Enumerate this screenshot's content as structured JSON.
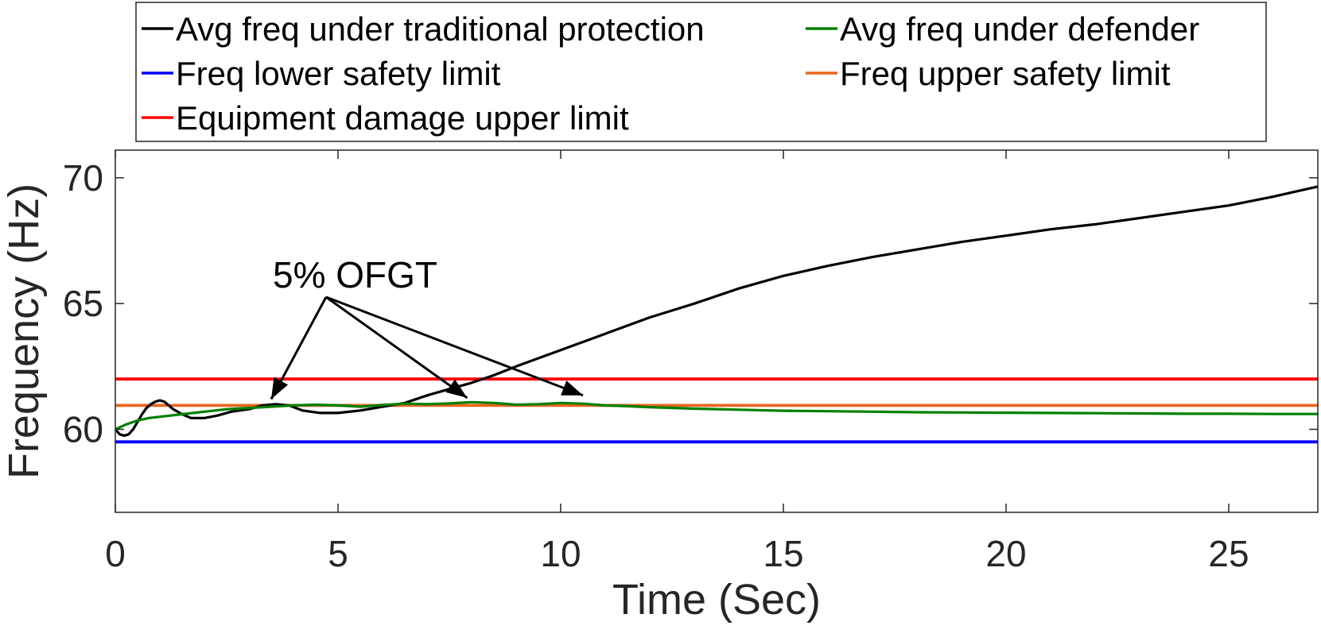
{
  "chart_data": {
    "type": "line",
    "title": "",
    "xlabel": "Time (Sec)",
    "ylabel": "Frequency (Hz)",
    "xlim": [
      0,
      27
    ],
    "ylim": [
      56.7,
      71.1
    ],
    "x_ticks": [
      0,
      5,
      10,
      15,
      20,
      25
    ],
    "y_ticks": [
      60,
      65,
      70
    ],
    "grid": false,
    "legend_position": "top",
    "annotation": {
      "text": "5% OFGT",
      "targets": [
        {
          "x": 3.5,
          "y": 61.2
        },
        {
          "x": 7.9,
          "y": 61.25
        },
        {
          "x": 10.5,
          "y": 61.35
        }
      ],
      "origin": {
        "x": 4.7,
        "y": 65.3
      }
    },
    "series": [
      {
        "name": "Avg freq under traditional protection",
        "color": "#000000",
        "x": [
          0,
          0.1,
          0.2,
          0.3,
          0.4,
          0.5,
          0.6,
          0.7,
          0.8,
          0.9,
          1.0,
          1.1,
          1.2,
          1.3,
          1.5,
          1.7,
          2.0,
          2.3,
          2.6,
          3.0,
          3.3,
          3.6,
          3.9,
          4.2,
          4.6,
          5.0,
          5.5,
          6.0,
          6.5,
          7.0,
          7.5,
          8.0,
          8.5,
          9.0,
          10.0,
          11.0,
          12.0,
          13.0,
          14.0,
          15.0,
          16.0,
          17.0,
          18.0,
          19.0,
          20.0,
          21.0,
          22.0,
          23.0,
          24.0,
          25.0,
          26.0,
          26.5,
          27.0
        ],
        "y": [
          60.0,
          59.8,
          59.75,
          59.8,
          60.0,
          60.3,
          60.6,
          60.85,
          61.0,
          61.1,
          61.15,
          61.1,
          60.95,
          60.8,
          60.6,
          60.45,
          60.45,
          60.55,
          60.7,
          60.8,
          60.95,
          61.0,
          60.95,
          60.75,
          60.65,
          60.65,
          60.75,
          60.9,
          61.05,
          61.35,
          61.6,
          61.85,
          62.15,
          62.5,
          63.15,
          63.8,
          64.45,
          65.0,
          65.6,
          66.1,
          66.5,
          66.85,
          67.15,
          67.45,
          67.7,
          67.95,
          68.15,
          68.4,
          68.65,
          68.9,
          69.25,
          69.45,
          69.65
        ]
      },
      {
        "name": "Avg freq under defender",
        "color": "#008000",
        "x": [
          0,
          0.25,
          0.5,
          0.75,
          1.0,
          1.5,
          2.0,
          2.5,
          3.0,
          3.5,
          4.0,
          4.5,
          5.0,
          5.5,
          6.0,
          6.5,
          7.0,
          7.5,
          8.0,
          8.5,
          9.0,
          9.5,
          10.0,
          10.5,
          11.0,
          11.5,
          12.0,
          13.0,
          14.0,
          15.0,
          16.0,
          17.0,
          18.0,
          19.0,
          20.0,
          21.0,
          22.0,
          23.0,
          24.0,
          25.0,
          26.0,
          27.0
        ],
        "y": [
          60.0,
          60.2,
          60.35,
          60.45,
          60.5,
          60.6,
          60.7,
          60.8,
          60.85,
          60.9,
          60.95,
          60.98,
          60.95,
          60.9,
          60.97,
          61.02,
          61.0,
          61.03,
          61.08,
          61.05,
          60.98,
          61.0,
          61.05,
          61.02,
          60.95,
          60.92,
          60.88,
          60.82,
          60.78,
          60.74,
          60.72,
          60.7,
          60.68,
          60.67,
          60.66,
          60.65,
          60.64,
          60.63,
          60.62,
          60.62,
          60.61,
          60.61
        ]
      },
      {
        "name": "Freq lower safety limit",
        "color": "#0000ff",
        "x": [
          0,
          27
        ],
        "y": [
          59.5,
          59.5
        ]
      },
      {
        "name": "Freq upper safety limit",
        "color": "#e8651d",
        "x": [
          0,
          27
        ],
        "y": [
          60.95,
          60.95
        ]
      },
      {
        "name": "Equipment damage upper limit",
        "color": "#ff0000",
        "x": [
          0,
          27
        ],
        "y": [
          62.0,
          62.0
        ]
      }
    ]
  }
}
